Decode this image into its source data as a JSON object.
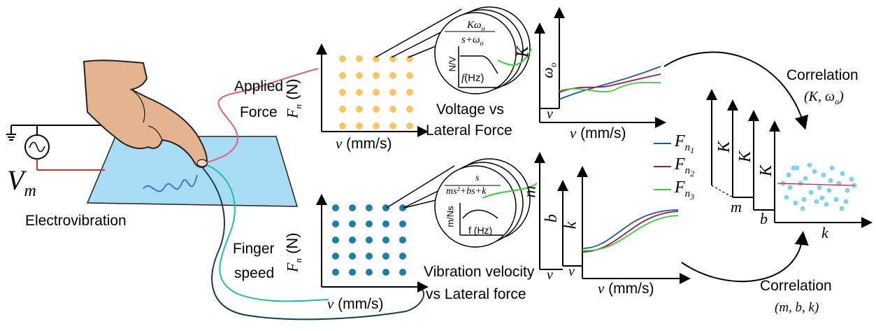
{
  "left": {
    "voltage_symbol": "V",
    "voltage_subscript": "m",
    "caption": "Electrovibration",
    "applied_force_line1": "Applied",
    "applied_force_line2": "Force",
    "finger_speed_line1": "Finger",
    "finger_speed_line2": "speed"
  },
  "grid_top": {
    "ylabel": "F",
    "ylabel_sub": "n",
    "ylabel_unit": " (N)",
    "xlabel": "ν",
    "xlabel_unit": " (mm/s)",
    "dot_color": "#f5c869",
    "caption_line1": "Voltage vs",
    "caption_line2": "Lateral Force"
  },
  "grid_bottom": {
    "ylabel": "F",
    "ylabel_sub": "n",
    "ylabel_unit": " (N)",
    "xlabel": "ν",
    "xlabel_unit": " (mm/s)",
    "dot_color": "#1d7fa6",
    "caption_line1": "Vibration velocity",
    "caption_line2": "vs Lateral force"
  },
  "bode_top": {
    "ylabel": "N/V",
    "xlabel_var": "f",
    "xlabel_unit": "(Hz)",
    "tf_num": "Kω",
    "tf_num_sub": "o",
    "tf_den": "s+ω",
    "tf_den_sub": "o"
  },
  "bode_bottom": {
    "ylabel": "m/Ns",
    "xlabel_unit": "f (Hz)",
    "tf_num": "s",
    "tf_den": "ms²+bs+k"
  },
  "plot_top": {
    "front_ylabel": "ω",
    "front_ylabel_sub": "o",
    "back_ylabel": "K",
    "corner_label": "ν",
    "xlabel": "ν",
    "xlabel_unit": " (mm/s)"
  },
  "plot_bottom": {
    "ylabel_back": "m",
    "ylabel_mid": "b",
    "ylabel_front": "k",
    "corner_label_1": "ν",
    "corner_label_2": "ν",
    "xlabel": "ν",
    "xlabel_unit": " (mm/s)"
  },
  "legend": [
    {
      "symbol": "F",
      "sub": "n",
      "subsub": "1",
      "color": "#1f5aa6"
    },
    {
      "symbol": "F",
      "sub": "n",
      "subsub": "2",
      "color": "#a3174a"
    },
    {
      "symbol": "F",
      "sub": "n",
      "subsub": "3",
      "color": "#3ccc3c"
    }
  ],
  "correlation_top": {
    "title": "Correlation",
    "vars": "(K, ω",
    "vars_sub": "o",
    "vars_end": ")"
  },
  "correlation_bottom": {
    "title": "Correlation",
    "vars": "(m, b, k)"
  },
  "scatter": {
    "label_K1": "K",
    "label_K2": "K",
    "label_K3": "K",
    "label_m": "m",
    "label_b": "b",
    "label_k": "k",
    "dot_color": "#7fd3f0",
    "fit_color": "#d62020"
  }
}
